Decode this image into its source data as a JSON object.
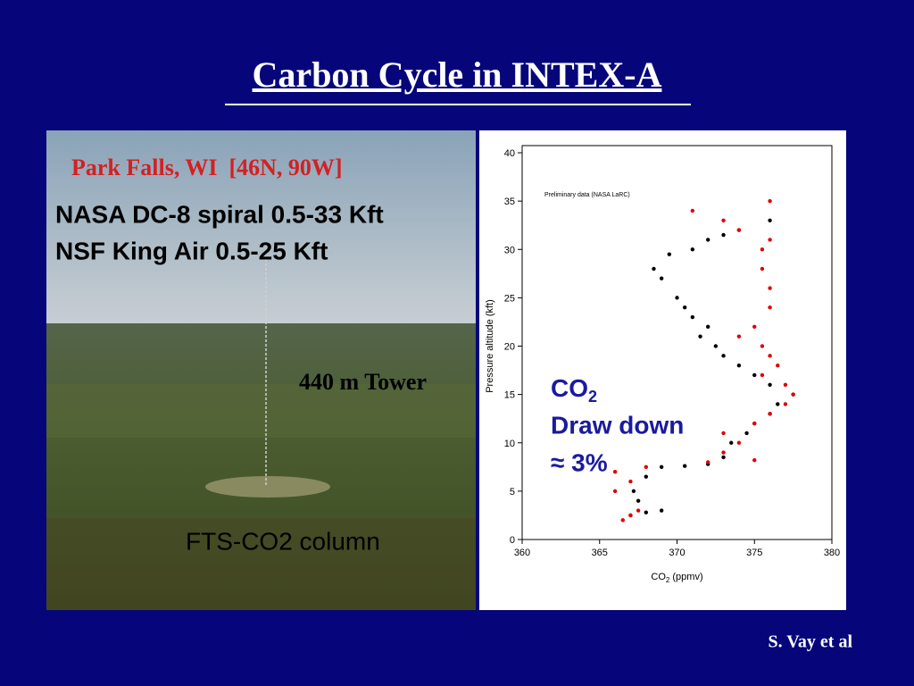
{
  "title": "Carbon Cycle in INTEX-A",
  "photo": {
    "location": "Park Falls, WI  [46N, 90W]",
    "lines": [
      "NASA DC-8 spiral 0.5-33 Kft",
      "NSF King Air 0.5-25 Kft"
    ],
    "tower": "440 m Tower",
    "column": "FTS-CO2 column"
  },
  "chart_data": {
    "type": "scatter",
    "note": "Preliminary data (NASA LaRC)",
    "xlabel": [
      "CO",
      "2",
      " (ppmv)"
    ],
    "ylabel": "Pressure altitude (kft)",
    "xlim": [
      360,
      380
    ],
    "ylim": [
      0,
      40
    ],
    "xticks": [
      360,
      365,
      370,
      375,
      380
    ],
    "yticks": [
      0,
      5,
      10,
      15,
      20,
      25,
      30,
      35,
      40
    ],
    "series": [
      {
        "color": "#000000",
        "x": [
          367,
          368,
          369,
          367.5,
          367.2,
          368,
          369,
          370.5,
          372,
          373,
          373.5,
          374.5,
          375,
          376,
          376.5,
          377.5,
          376,
          375,
          374,
          373,
          372.5,
          371.5,
          372,
          371,
          370.5,
          370,
          369,
          368.5,
          369.5,
          371,
          372,
          373,
          374,
          376
        ],
        "values": [
          2.5,
          2.8,
          3,
          4,
          5,
          6.5,
          7.5,
          7.6,
          7.8,
          8.5,
          10,
          11,
          12,
          13,
          14,
          15,
          16,
          17,
          18,
          19,
          20,
          21,
          22,
          23,
          24,
          25,
          27,
          28,
          29.5,
          30,
          31,
          31.5,
          32,
          33
        ]
      },
      {
        "color": "#e00000",
        "x": [
          366.5,
          367,
          367.5,
          366,
          367,
          366,
          368,
          372,
          375,
          373,
          374,
          373,
          375,
          376,
          377,
          377.5,
          377,
          375.5,
          376.5,
          376,
          375.5,
          374,
          375,
          376,
          376,
          375.5,
          375.5,
          376,
          374,
          373,
          371,
          376
        ],
        "values": [
          2,
          2.5,
          3,
          5,
          6,
          7,
          7.5,
          8,
          8.2,
          9,
          10,
          11,
          12,
          13,
          14,
          15,
          16,
          17,
          18,
          19,
          20,
          21,
          22,
          24,
          26,
          28,
          30,
          31,
          32,
          33,
          34,
          35
        ]
      }
    ]
  },
  "annotation": {
    "line1": [
      "CO",
      "2"
    ],
    "line2": "Draw down",
    "line3": "≈ 3%"
  },
  "credit": "S. Vay et al"
}
